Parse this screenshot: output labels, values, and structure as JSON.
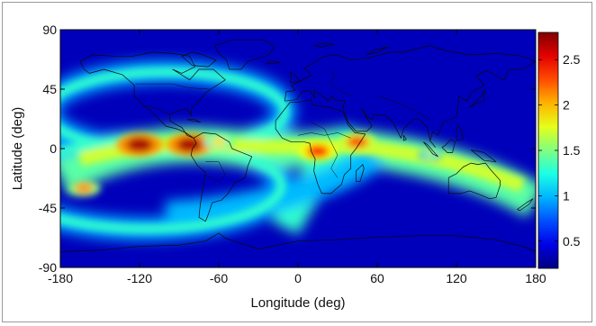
{
  "figure": {
    "xlabel": "Longitude (deg)",
    "ylabel": "Latitude (deg)"
  },
  "chart_data": {
    "type": "heatmap",
    "title": "",
    "xlabel": "Longitude (deg)",
    "ylabel": "Latitude (deg)",
    "xlim": [
      -180,
      180
    ],
    "ylim": [
      -90,
      90
    ],
    "x_ticks": [
      -180,
      -120,
      -60,
      0,
      60,
      120,
      180
    ],
    "x_tick_labels": [
      "-180",
      "-120",
      "-60",
      "0",
      "60",
      "120",
      "180"
    ],
    "y_ticks": [
      90,
      45,
      0,
      -45,
      -90
    ],
    "y_tick_labels": [
      "90",
      "45",
      "0",
      "-45",
      "-90"
    ],
    "colorbar": {
      "colormap": "jet",
      "range": [
        0.2,
        2.8
      ],
      "ticks": [
        0.5,
        1,
        1.5,
        2,
        2.5
      ],
      "tick_labels": [
        "0.5",
        "1",
        "1.5",
        "2",
        "2.5"
      ]
    },
    "background_value": 0.35,
    "hotspots": [
      {
        "lon": -120,
        "lat": 3,
        "value": 2.7
      },
      {
        "lon": -82,
        "lat": 3,
        "value": 2.7
      },
      {
        "lon": 15,
        "lat": -2,
        "value": 2.4
      },
      {
        "lon": 45,
        "lat": 5,
        "value": 2.3
      },
      {
        "lon": -162,
        "lat": -30,
        "value": 2.1
      },
      {
        "lon": -60,
        "lat": 5,
        "value": 1.9
      },
      {
        "lon": 100,
        "lat": -5,
        "value": 1.6
      }
    ],
    "bands": [
      {
        "name": "equatorial band",
        "value": 1.7
      },
      {
        "name": "northern ring",
        "value": 1.3
      },
      {
        "name": "southern ring",
        "value": 1.3
      }
    ],
    "grid": false,
    "overlay": "world coastlines"
  },
  "colors": {
    "frame_border": "#9a9a9a",
    "axis": "#000000",
    "coastline": "#0a0a0a"
  }
}
